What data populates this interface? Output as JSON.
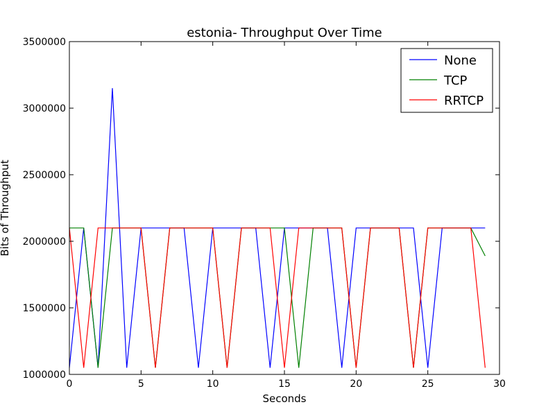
{
  "chart_data": {
    "type": "line",
    "title": "estonia- Throughput Over Time",
    "xlabel": "Seconds",
    "ylabel": "Bits of Throughput",
    "xlim": [
      0,
      30
    ],
    "ylim": [
      1000000,
      3500000
    ],
    "xticks": [
      0,
      5,
      10,
      15,
      20,
      25,
      30
    ],
    "yticks": [
      1000000,
      1500000,
      2000000,
      2500000,
      3000000,
      3500000
    ],
    "grid": false,
    "legend_position": "top-right",
    "x": [
      0,
      1,
      2,
      3,
      4,
      5,
      6,
      7,
      8,
      9,
      10,
      11,
      12,
      13,
      14,
      15,
      16,
      17,
      18,
      19,
      20,
      21,
      22,
      23,
      24,
      25,
      26,
      27,
      28,
      29
    ],
    "series": [
      {
        "name": "None",
        "color": "#0000ff",
        "values": [
          1050000,
          2100000,
          1050000,
          3150000,
          1050000,
          2100000,
          2100000,
          2100000,
          2100000,
          1050000,
          2100000,
          2100000,
          2100000,
          2100000,
          1050000,
          2100000,
          2100000,
          2100000,
          2100000,
          1050000,
          2100000,
          2100000,
          2100000,
          2100000,
          2100000,
          1050000,
          2100000,
          2100000,
          2100000,
          2100000
        ]
      },
      {
        "name": "TCP",
        "color": "#008000",
        "values": [
          2100000,
          2100000,
          1050000,
          2100000,
          2100000,
          2100000,
          1050000,
          2100000,
          2100000,
          2100000,
          2100000,
          1050000,
          2100000,
          2100000,
          2100000,
          2100000,
          1050000,
          2100000,
          2100000,
          2100000,
          1050000,
          2100000,
          2100000,
          2100000,
          1050000,
          2100000,
          2100000,
          2100000,
          2100000,
          1890000
        ]
      },
      {
        "name": "RRTCP",
        "color": "#ff0000",
        "values": [
          2100000,
          1050000,
          2100000,
          2100000,
          2100000,
          2100000,
          1050000,
          2100000,
          2100000,
          2100000,
          2100000,
          1050000,
          2100000,
          2100000,
          2100000,
          1050000,
          2100000,
          2100000,
          2100000,
          2100000,
          1050000,
          2100000,
          2100000,
          2100000,
          1050000,
          2100000,
          2100000,
          2100000,
          2100000,
          1050000
        ]
      }
    ]
  }
}
